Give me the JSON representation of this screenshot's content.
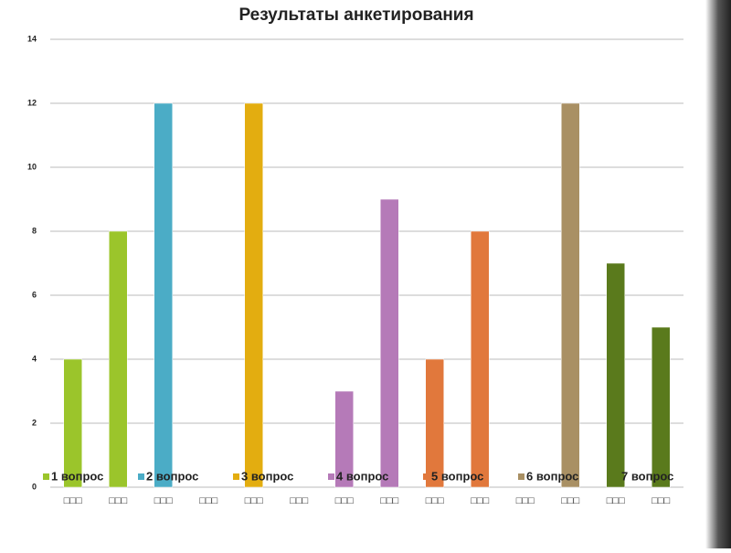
{
  "chart_data": {
    "type": "bar",
    "title": "Результаты анкетирования",
    "categories": [
      "□□□",
      "□□□",
      "□□□",
      "□□□",
      "□□□",
      "□□□",
      "□□□",
      "□□□",
      "□□□",
      "□□□",
      "□□□",
      "□□□",
      "□□□",
      "□□□"
    ],
    "series": [
      {
        "name": "1 вопрос",
        "color": "#9bc52b",
        "values": [
          4,
          8,
          null,
          null,
          null,
          null,
          null,
          null,
          null,
          null,
          null,
          null,
          null,
          null
        ]
      },
      {
        "name": "2 вопрос",
        "color": "#4bacc6",
        "values": [
          null,
          null,
          12,
          null,
          null,
          null,
          null,
          null,
          null,
          null,
          null,
          null,
          null,
          null
        ]
      },
      {
        "name": "3 вопрос",
        "color": "#e3ad10",
        "values": [
          null,
          null,
          null,
          null,
          12,
          null,
          null,
          null,
          null,
          null,
          null,
          null,
          null,
          null
        ]
      },
      {
        "name": "4 вопрос",
        "color": "#b57ab8",
        "values": [
          null,
          null,
          null,
          null,
          null,
          null,
          3,
          9,
          null,
          null,
          null,
          null,
          null,
          null
        ]
      },
      {
        "name": "5 вопрос",
        "color": "#e1783c",
        "values": [
          null,
          null,
          null,
          null,
          null,
          null,
          null,
          null,
          4,
          8,
          null,
          null,
          null,
          null
        ]
      },
      {
        "name": "6 вопрос",
        "color": "#a99064",
        "values": [
          null,
          null,
          null,
          null,
          null,
          null,
          null,
          null,
          null,
          null,
          null,
          12,
          null,
          null
        ]
      },
      {
        "name": "7 вопрос",
        "color": "#5a7a1c",
        "values": [
          null,
          null,
          null,
          null,
          null,
          null,
          null,
          null,
          null,
          null,
          null,
          null,
          7,
          5
        ]
      }
    ],
    "ylim": [
      0,
      14
    ],
    "yticks": [
      0,
      2,
      4,
      6,
      8,
      10,
      12,
      14
    ],
    "grid": true,
    "legend": "bottom"
  }
}
